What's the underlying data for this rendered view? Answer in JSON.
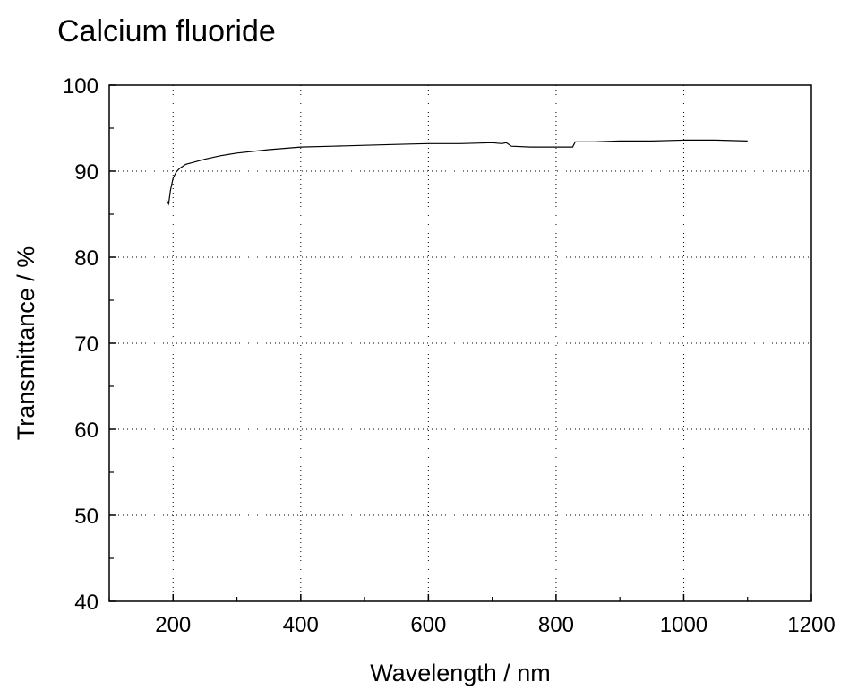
{
  "chart_data": {
    "type": "line",
    "title": "Calcium fluoride",
    "xlabel": "Wavelength / nm",
    "ylabel": "Transmittance / %",
    "xlim": [
      100,
      1200
    ],
    "ylim": [
      40,
      100
    ],
    "xticks": [
      200,
      400,
      600,
      800,
      1000,
      1200
    ],
    "yticks": [
      40,
      50,
      60,
      70,
      80,
      90,
      100
    ],
    "grid": true,
    "line_color": "#000000",
    "series": [
      {
        "x": [
          190,
          193,
          196,
          200,
          205,
          210,
          220,
          230,
          250,
          275,
          300,
          350,
          400,
          450,
          500,
          550,
          600,
          650,
          700,
          715,
          722,
          730,
          760,
          800,
          826,
          830,
          860,
          900,
          950,
          1000,
          1050,
          1100
        ],
        "y": [
          86.6,
          86.2,
          87.8,
          89.2,
          89.9,
          90.3,
          90.8,
          91.0,
          91.4,
          91.8,
          92.1,
          92.5,
          92.8,
          92.9,
          93.0,
          93.1,
          93.2,
          93.2,
          93.3,
          93.2,
          93.3,
          92.9,
          92.8,
          92.8,
          92.8,
          93.4,
          93.4,
          93.5,
          93.5,
          93.6,
          93.6,
          93.5
        ]
      }
    ]
  }
}
